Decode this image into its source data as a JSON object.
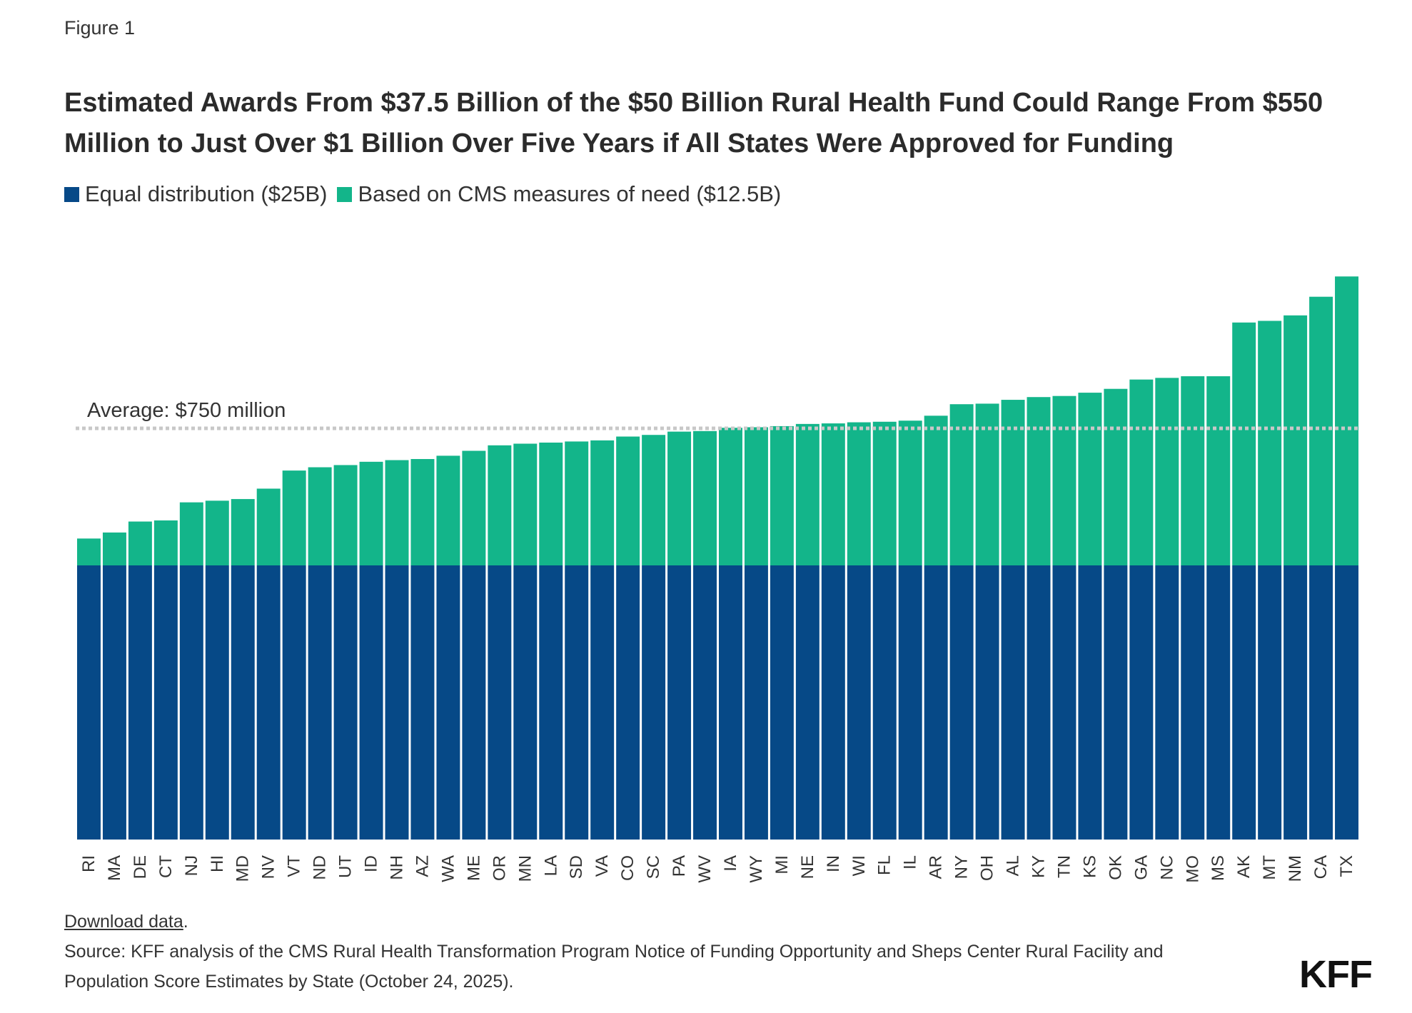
{
  "figure_label": "Figure 1",
  "title": "Estimated Awards From $37.5 Billion of the $50 Billion Rural Health Fund Could Range From $550 Million to Just Over $1 Billion Over Five Years if All States Were Approved for Funding",
  "footer": {
    "download_label": "Download data",
    "download_suffix": ".",
    "source": "Source: KFF analysis of the CMS Rural Health Transformation Program Notice of Funding Opportunity and Sheps Center Rural Facility and Population Score Estimates by State (October 24, 2025).",
    "logo": "KFF"
  },
  "colors": {
    "equal": "#064987",
    "need": "#13b58a",
    "average_line": "#c8c8c8"
  },
  "chart_data": {
    "type": "bar",
    "stacked": true,
    "categories": [
      "RI",
      "MA",
      "DE",
      "CT",
      "NJ",
      "HI",
      "MD",
      "NV",
      "VT",
      "ND",
      "UT",
      "ID",
      "NH",
      "AZ",
      "WA",
      "ME",
      "OR",
      "MN",
      "LA",
      "SD",
      "VA",
      "CO",
      "SC",
      "PA",
      "WV",
      "IA",
      "WY",
      "MI",
      "NE",
      "IN",
      "WI",
      "FL",
      "IL",
      "AR",
      "NY",
      "OH",
      "AL",
      "KY",
      "TN",
      "KS",
      "OK",
      "GA",
      "NC",
      "MO",
      "MS",
      "AK",
      "MT",
      "NM",
      "CA",
      "TX"
    ],
    "series": [
      {
        "name": "Equal distribution ($25B)",
        "color": "#064987",
        "values": [
          500,
          500,
          500,
          500,
          500,
          500,
          500,
          500,
          500,
          500,
          500,
          500,
          500,
          500,
          500,
          500,
          500,
          500,
          500,
          500,
          500,
          500,
          500,
          500,
          500,
          500,
          500,
          500,
          500,
          500,
          500,
          500,
          500,
          500,
          500,
          500,
          500,
          500,
          500,
          500,
          500,
          500,
          500,
          500,
          500,
          500,
          500,
          500,
          500,
          500
        ]
      },
      {
        "name": "Based on CMS measures of need ($12.5B)",
        "color": "#13b58a",
        "values": [
          49,
          60,
          80,
          82,
          115,
          118,
          121,
          140,
          173,
          179,
          183,
          189,
          192,
          194,
          200,
          209,
          219,
          222,
          224,
          226,
          228,
          235,
          238,
          244,
          245,
          251,
          252,
          254,
          258,
          259,
          261,
          262,
          264,
          273,
          294,
          295,
          302,
          307,
          309,
          315,
          322,
          339,
          342,
          345,
          345,
          443,
          446,
          456,
          490,
          527
        ]
      }
    ],
    "average": {
      "label": "Average: $750 million",
      "value": 750
    },
    "ylim": [
      0,
      1100
    ],
    "xlabel": "",
    "ylabel": "",
    "grid": false,
    "legend_position": "top-left"
  }
}
